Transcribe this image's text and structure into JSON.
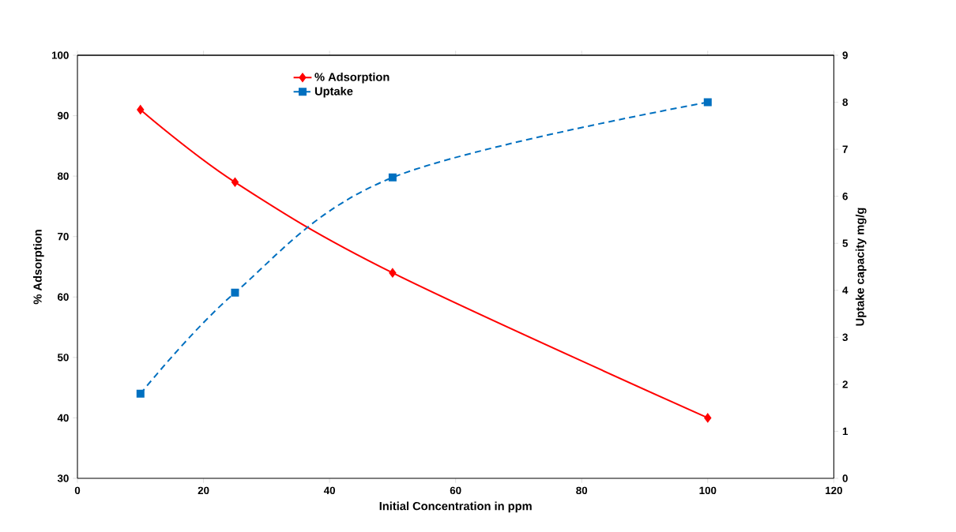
{
  "chart_data": {
    "type": "line",
    "xlabel": "Initial Concentration in ppm",
    "ylabel": "% Adsorption",
    "y2label": "Uptake capacity mg/g",
    "xlim": [
      0,
      120
    ],
    "xticks": [
      0,
      20,
      40,
      60,
      80,
      100,
      120
    ],
    "ylim": [
      30,
      100
    ],
    "yticks": [
      30,
      40,
      50,
      60,
      70,
      80,
      90,
      100
    ],
    "y2lim": [
      0,
      9
    ],
    "y2ticks": [
      0,
      1,
      2,
      3,
      4,
      5,
      6,
      7,
      8,
      9
    ],
    "x": [
      10,
      25,
      50,
      100
    ],
    "legend": "top",
    "grid": false,
    "series": [
      {
        "name": "% Adsorption",
        "color": "#ff0000",
        "values": [
          91,
          79,
          64,
          40
        ],
        "marker": "diamond",
        "line_style": "solid"
      },
      {
        "name": "Uptake",
        "color": "#0070c0",
        "values": [
          1.8,
          3.95,
          6.4,
          8.0
        ],
        "marker": "square",
        "line_style": "dashed",
        "axis": "y2"
      }
    ]
  }
}
